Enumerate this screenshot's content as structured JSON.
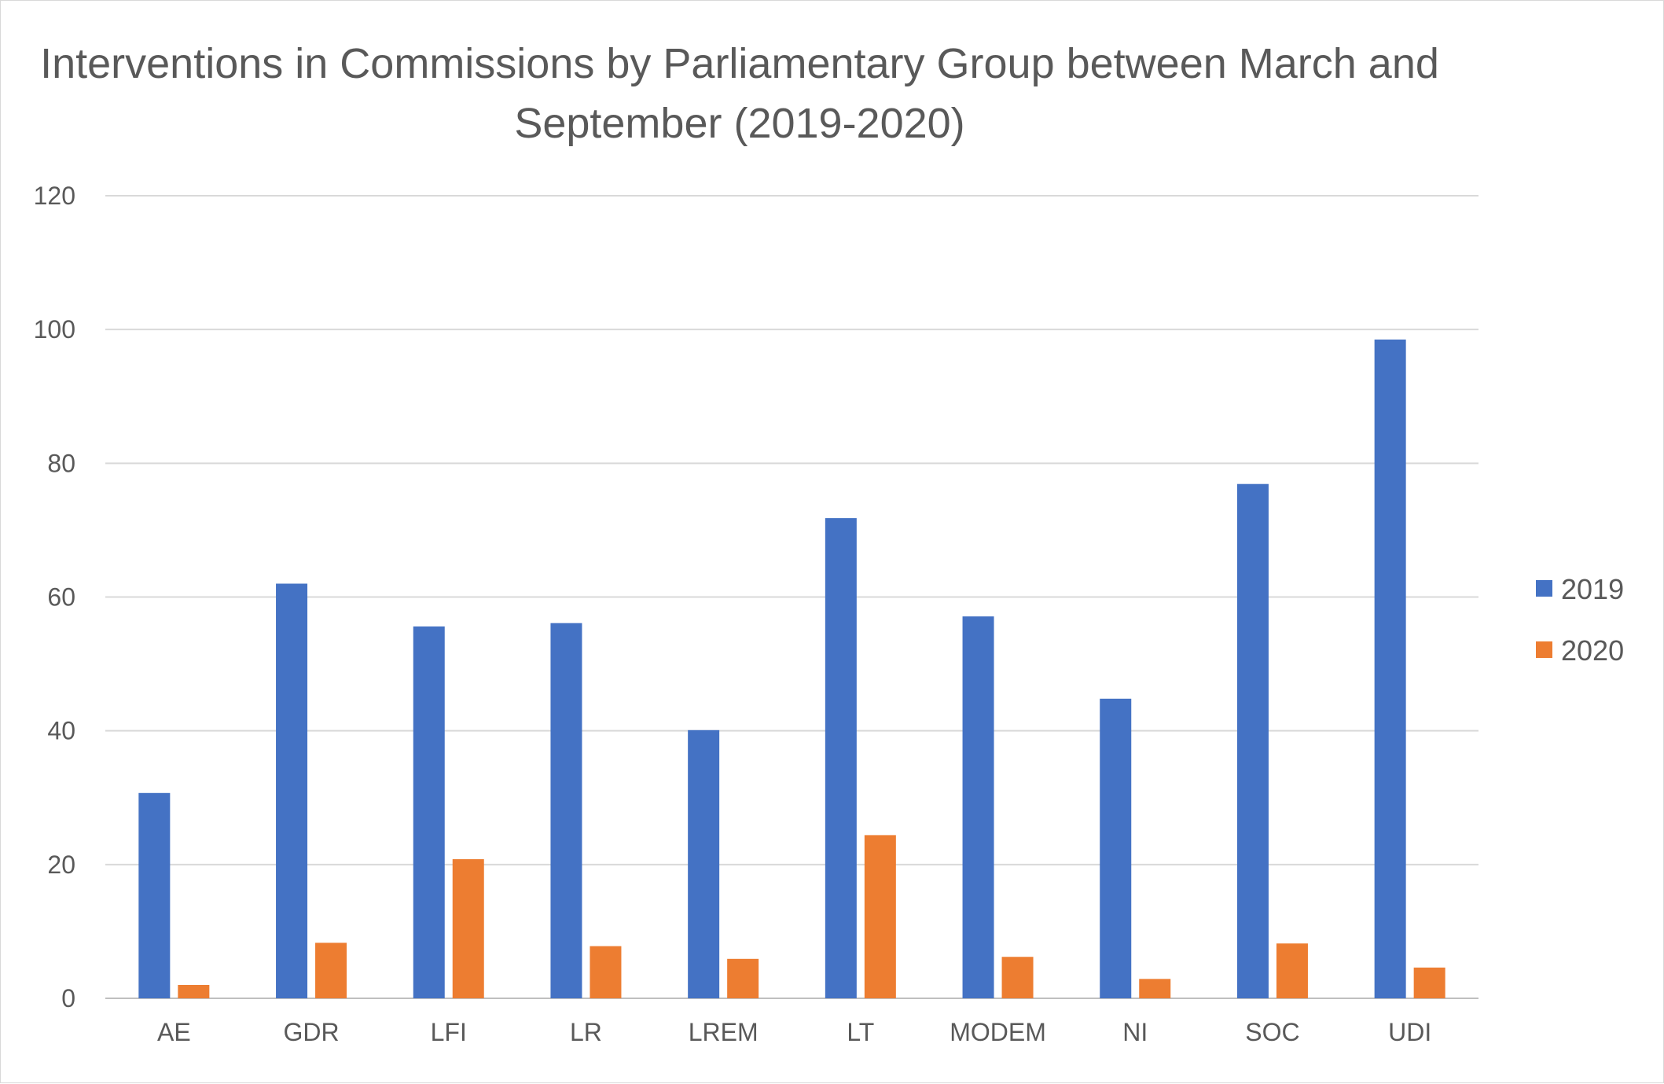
{
  "chart_data": {
    "type": "bar",
    "title": "Interventions in Commissions by Parliamentary Group between March and September (2019-2020)",
    "xlabel": "",
    "ylabel": "",
    "ylim": [
      0,
      120
    ],
    "yticks": [
      0,
      20,
      40,
      60,
      80,
      100,
      120
    ],
    "grid": true,
    "legend_position": "right",
    "categories": [
      "AE",
      "GDR",
      "LFI",
      "LR",
      "LREM",
      "LT",
      "MODEM",
      "NI",
      "SOC",
      "UDI"
    ],
    "series": [
      {
        "name": "2019",
        "color": "#4472C4",
        "values": [
          30.7,
          62.0,
          55.6,
          56.1,
          40.1,
          71.8,
          57.1,
          44.8,
          76.9,
          98.5
        ]
      },
      {
        "name": "2020",
        "color": "#ED7D31",
        "values": [
          2.0,
          8.3,
          20.8,
          7.8,
          5.9,
          24.4,
          6.2,
          2.9,
          8.2,
          4.6
        ]
      }
    ]
  },
  "colors": {
    "title": "#595959",
    "axis_text": "#595959",
    "gridline": "#d9d9d9",
    "axis_line": "#bfbfbf"
  }
}
